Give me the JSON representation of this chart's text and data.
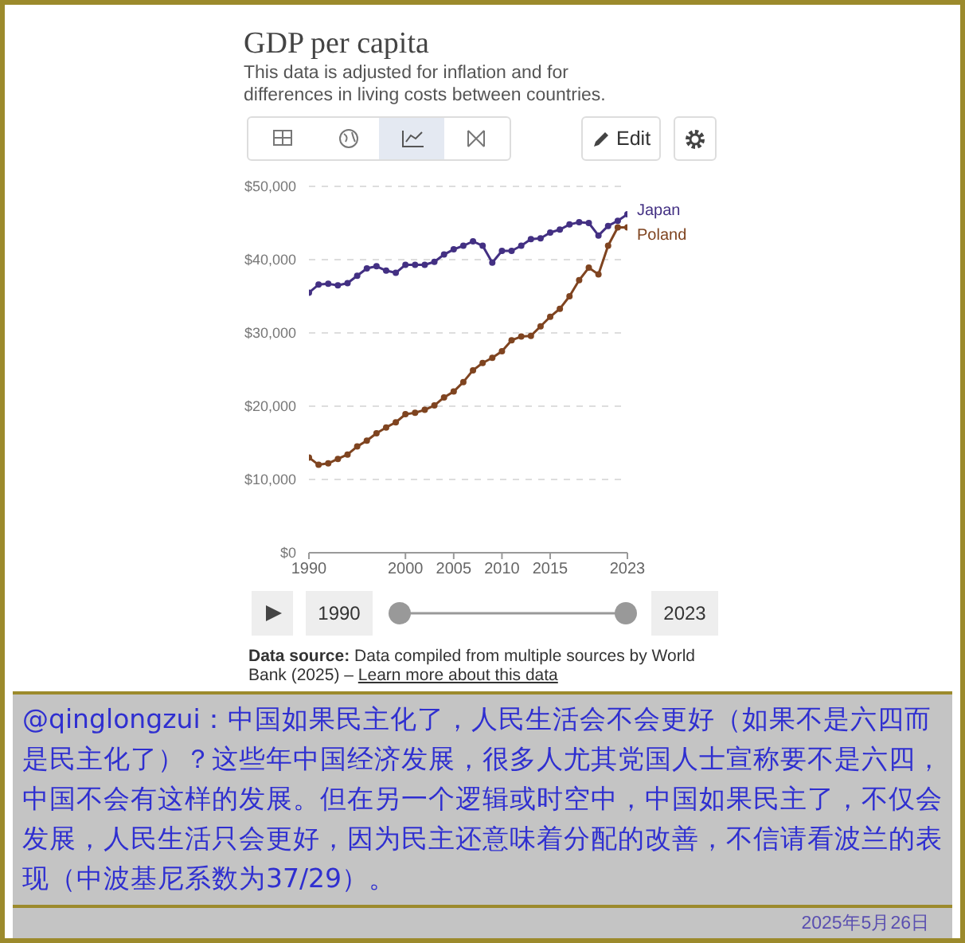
{
  "chart_data": {
    "type": "line",
    "title": "GDP per capita",
    "subtitle": "This data is adjusted for inflation and for differences in living costs between countries.",
    "x": [
      1990,
      1991,
      1992,
      1993,
      1994,
      1995,
      1996,
      1997,
      1998,
      1999,
      2000,
      2001,
      2002,
      2003,
      2004,
      2005,
      2006,
      2007,
      2008,
      2009,
      2010,
      2011,
      2012,
      2013,
      2014,
      2015,
      2016,
      2017,
      2018,
      2019,
      2020,
      2021,
      2022,
      2023
    ],
    "series": [
      {
        "name": "Japan",
        "color": "#433083",
        "values": [
          35500,
          36600,
          36700,
          36500,
          36800,
          37800,
          38800,
          39100,
          38500,
          38200,
          39300,
          39300,
          39300,
          39700,
          40700,
          41400,
          41900,
          42500,
          41900,
          39600,
          41200,
          41200,
          41900,
          42800,
          42900,
          43700,
          44100,
          44800,
          45100,
          45000,
          43300,
          44600,
          45300,
          46200
        ]
      },
      {
        "name": "Poland",
        "color": "#7f4420",
        "values": [
          13000,
          12000,
          12200,
          12800,
          13400,
          14500,
          15300,
          16300,
          17100,
          17800,
          18900,
          19100,
          19500,
          20100,
          21200,
          22000,
          23300,
          24900,
          25900,
          26600,
          27500,
          29000,
          29500,
          29600,
          30900,
          32200,
          33300,
          35000,
          37200,
          38900,
          38000,
          41900,
          44400,
          44400
        ]
      }
    ],
    "xlim": [
      1990,
      2023
    ],
    "xticks": [
      1990,
      2000,
      2005,
      2010,
      2015,
      2023
    ],
    "ylim": [
      0,
      50000
    ],
    "yticks": [
      {
        "value": 0,
        "label": "$0"
      },
      {
        "value": 10000,
        "label": "$10,000"
      },
      {
        "value": 20000,
        "label": "$20,000"
      },
      {
        "value": 30000,
        "label": "$30,000"
      },
      {
        "value": 40000,
        "label": "$40,000"
      },
      {
        "value": 50000,
        "label": "$50,000"
      }
    ],
    "grid": "y",
    "legend": false,
    "marker": "circle",
    "line_style": "solid",
    "annotations": [
      "Edit",
      "1990",
      "2023",
      "Data source: Data compiled from multiple sources by World Bank (2025) – Learn more about this data",
      "@qinglongzui：中国如果民主化了，人民生活会不会更好（如果不是六四而是民主化了）？这些年中国经济发展，很多人尤其党国人士宣称要不是六四，中国不会有这样的发展。但在另一个逻辑或时空中，中国如果民主了，不仅会发展，人民生活只会更好，因为民主还意味着分配的改善，不信请看波兰的表现（中波基尼系数为37/29）。",
      "2025年5月26日"
    ]
  }
}
